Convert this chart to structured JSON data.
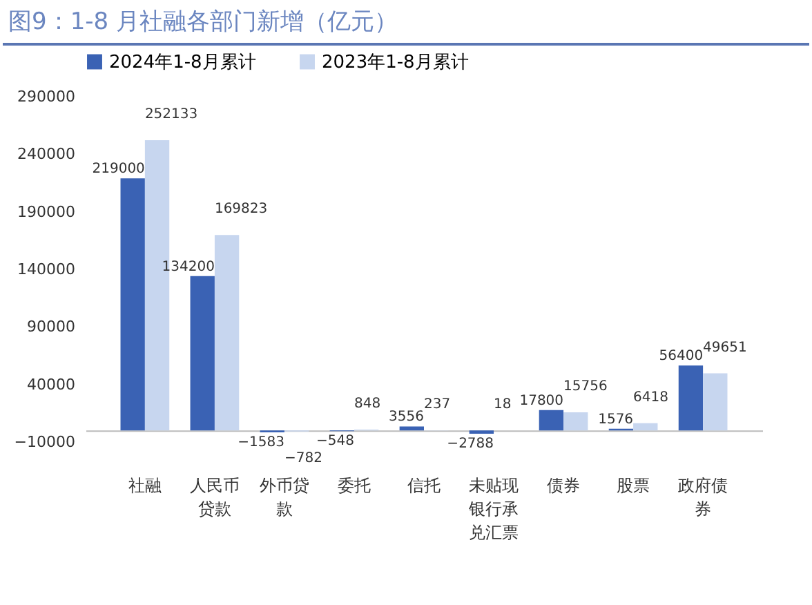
{
  "chart_data": {
    "type": "bar",
    "title": "图9：1-8 月社融各部门新增（亿元）",
    "categories": [
      "社融",
      "人民币贷款",
      "外币贷款",
      "委托",
      "信托",
      "未贴现银行承兑汇票",
      "债券",
      "股票",
      "政府债券"
    ],
    "series": [
      {
        "name": "2024年1-8月累计",
        "color": "#3a62b4",
        "values": [
          219000,
          134200,
          -1583,
          -548,
          3556,
          -2788,
          17800,
          1576,
          56400
        ]
      },
      {
        "name": "2023年1-8月累计",
        "color": "#c7d6ef",
        "values": [
          252133,
          169823,
          -782,
          848,
          237,
          18,
          15756,
          6418,
          49651
        ]
      }
    ],
    "ylim": [
      -10000,
      290000
    ],
    "yticks": [
      -10000,
      40000,
      90000,
      140000,
      190000,
      240000,
      290000
    ],
    "grid": false,
    "legend": "top",
    "data_labels": true
  }
}
